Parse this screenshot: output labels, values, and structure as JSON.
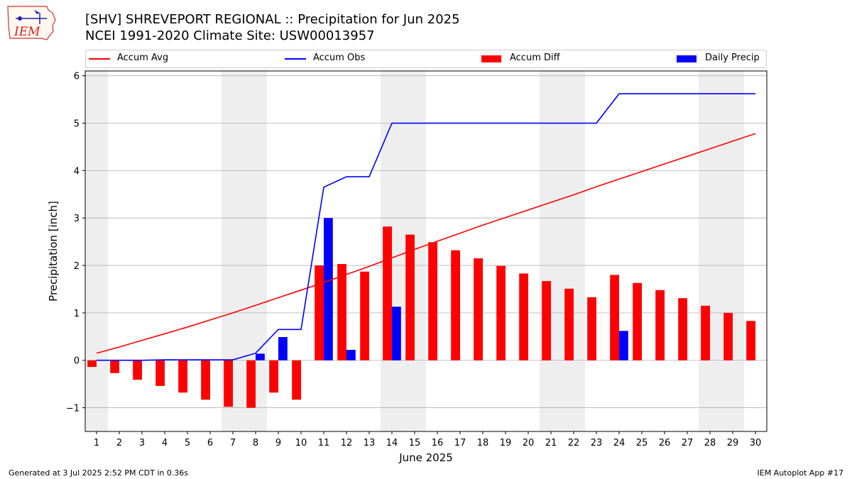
{
  "title": {
    "line1": "[SHV] SHREVEPORT REGIONAL :: Precipitation for Jun 2025",
    "line2": "NCEI 1991-2020 Climate Site: USW00013957"
  },
  "logo": {
    "text": "IEM",
    "icon": "iem-iowa-map-logo"
  },
  "legend": [
    {
      "label": "Accum Avg",
      "color": "#ff0000",
      "kind": "line"
    },
    {
      "label": "Accum Obs",
      "color": "#0000ff",
      "kind": "line"
    },
    {
      "label": "Accum Diff",
      "color": "#ff0000",
      "kind": "patch"
    },
    {
      "label": "Daily Precip",
      "color": "#0000ff",
      "kind": "patch"
    }
  ],
  "footer": {
    "left": "Generated at 3 Jul 2025 2:52 PM CDT in 0.36s",
    "right": "IEM Autoplot App #17"
  },
  "chart_data": {
    "type": "bar",
    "xlabel": "June 2025",
    "ylabel": "Precipitation [inch]",
    "xlim": [
      0.5,
      30.5
    ],
    "ylim": [
      -1.5,
      6.1
    ],
    "yticks": [
      -1,
      0,
      1,
      2,
      3,
      4,
      5,
      6
    ],
    "ytick_labels": [
      "−1",
      "0",
      "1",
      "2",
      "3",
      "4",
      "5",
      "6"
    ],
    "grid": true,
    "legend_position": "top",
    "days": [
      1,
      2,
      3,
      4,
      5,
      6,
      7,
      8,
      9,
      10,
      11,
      12,
      13,
      14,
      15,
      16,
      17,
      18,
      19,
      20,
      21,
      22,
      23,
      24,
      25,
      26,
      27,
      28,
      29,
      30
    ],
    "weekend_days": [
      1,
      7,
      8,
      14,
      15,
      21,
      22,
      28,
      29
    ],
    "series": [
      {
        "name": "Accum Avg",
        "type": "line",
        "color": "#ff0000",
        "values": [
          0.15,
          0.28,
          0.42,
          0.56,
          0.7,
          0.85,
          1.0,
          1.16,
          1.32,
          1.48,
          1.64,
          1.81,
          1.98,
          2.16,
          2.34,
          2.51,
          2.68,
          2.85,
          3.01,
          3.17,
          3.33,
          3.49,
          3.66,
          3.82,
          3.98,
          4.14,
          4.3,
          4.46,
          4.62,
          4.78
        ]
      },
      {
        "name": "Accum Obs",
        "type": "line",
        "color": "#0000ff",
        "values": [
          0.0,
          0.0,
          0.0,
          0.01,
          0.01,
          0.01,
          0.01,
          0.15,
          0.65,
          0.65,
          3.65,
          3.87,
          3.87,
          5.0,
          5.0,
          5.0,
          5.0,
          5.0,
          5.0,
          5.0,
          5.0,
          5.0,
          5.0,
          5.62,
          5.62,
          5.62,
          5.62,
          5.62,
          5.62,
          5.62
        ]
      },
      {
        "name": "Accum Diff",
        "type": "bar",
        "color": "#ff0000",
        "values": [
          -0.14,
          -0.27,
          -0.41,
          -0.54,
          -0.68,
          -0.83,
          -0.98,
          -1.0,
          -0.68,
          -0.83,
          2.0,
          2.03,
          1.87,
          2.82,
          2.65,
          2.49,
          2.32,
          2.15,
          1.99,
          1.83,
          1.67,
          1.51,
          1.33,
          1.8,
          1.63,
          1.48,
          1.31,
          1.15,
          1.0,
          0.83
        ]
      },
      {
        "name": "Daily Precip",
        "type": "bar",
        "color": "#0000ff",
        "values": [
          0,
          0,
          0,
          0.01,
          0,
          0,
          0,
          0.14,
          0.49,
          0,
          3.0,
          0.22,
          0,
          1.13,
          0,
          0,
          0,
          0,
          0,
          0,
          0,
          0,
          0,
          0.62,
          0,
          0,
          0,
          0,
          0,
          0
        ]
      }
    ]
  }
}
